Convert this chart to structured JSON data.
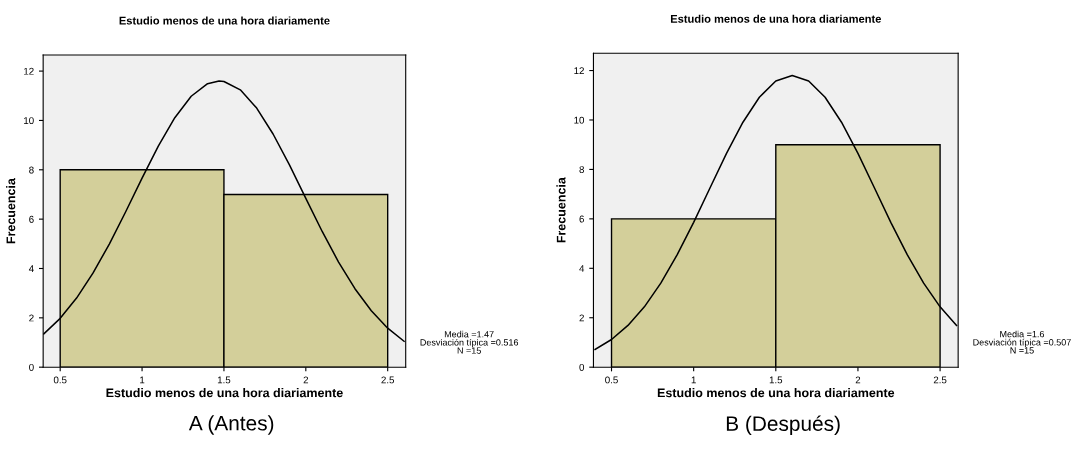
{
  "chart_data": [
    {
      "type": "histogram",
      "title": "Estudio menos de una hora diariamente",
      "xlabel": "Estudio menos de una hora diariamente",
      "ylabel": "Frecuencia",
      "bins": [
        0.5,
        1.5,
        2.5
      ],
      "xlim": [
        0.396,
        2.61
      ],
      "ylim": [
        0,
        12.65
      ],
      "xticks": [
        0.5,
        1,
        1.5,
        2,
        2.5
      ],
      "yticks": [
        0,
        2,
        4,
        6,
        8,
        10,
        12
      ],
      "grid": false,
      "legend": false,
      "series": [
        {
          "color": "#d3cf9a",
          "values": [
            8,
            7
          ]
        },
        {
          "type": "line",
          "color": "#000000",
          "x": [
            0.4,
            0.5,
            0.6,
            0.7,
            0.8,
            0.9,
            1.0,
            1.1,
            1.2,
            1.3,
            1.4,
            1.47,
            1.5,
            1.6,
            1.7,
            1.8,
            1.9,
            2.0,
            2.1,
            2.2,
            2.3,
            2.4,
            2.5,
            2.6
          ],
          "values": [
            1.35,
            1.98,
            2.8,
            3.81,
            4.99,
            6.3,
            7.66,
            8.97,
            10.11,
            10.98,
            11.49,
            11.6,
            11.58,
            11.24,
            10.5,
            9.45,
            8.2,
            6.84,
            5.5,
            4.26,
            3.18,
            2.29,
            1.58,
            1.05
          ]
        }
      ],
      "annotations": [
        "Media =1.47\nDesviación típica =0.516\nN =15",
        "A (Antes)"
      ]
    },
    {
      "type": "histogram",
      "title": "Estudio menos de una hora diariamente",
      "xlabel": "Estudio menos de una hora diariamente",
      "ylabel": "Frecuencia",
      "bins": [
        0.5,
        1.5,
        2.5
      ],
      "xlim": [
        0.39,
        2.61
      ],
      "ylim": [
        0,
        12.7
      ],
      "xticks": [
        0.5,
        1,
        1.5,
        2,
        2.5
      ],
      "yticks": [
        0,
        2,
        4,
        6,
        8,
        10,
        12
      ],
      "grid": false,
      "legend": false,
      "series": [
        {
          "color": "#d3cf9a",
          "values": [
            6,
            9
          ]
        },
        {
          "type": "line",
          "color": "#000000",
          "x": [
            0.4,
            0.5,
            0.6,
            0.7,
            0.8,
            0.9,
            1.0,
            1.1,
            1.2,
            1.3,
            1.4,
            1.5,
            1.6,
            1.7,
            1.8,
            1.9,
            2.0,
            2.1,
            2.2,
            2.3,
            2.4,
            2.5,
            2.6
          ],
          "values": [
            0.72,
            1.12,
            1.69,
            2.44,
            3.4,
            4.55,
            5.86,
            7.26,
            8.65,
            9.91,
            10.92,
            11.58,
            11.8,
            11.58,
            10.92,
            9.91,
            8.65,
            7.26,
            5.86,
            4.55,
            3.4,
            2.44,
            1.69
          ]
        }
      ],
      "annotations": [
        "Media =1.6\nDesviación típica =0.507\nN =15",
        "B (Después)"
      ]
    }
  ]
}
